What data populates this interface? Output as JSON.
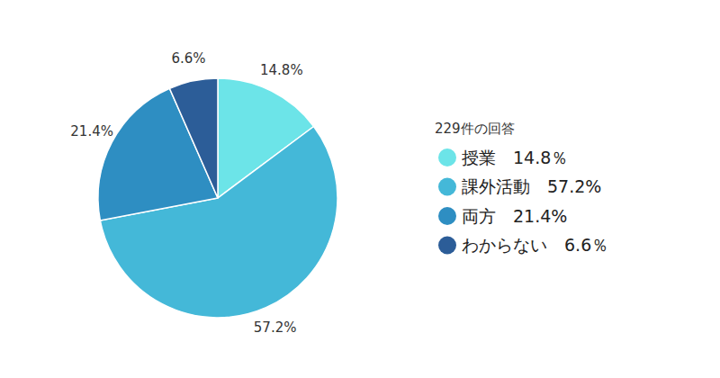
{
  "chart_data": {
    "type": "pie",
    "title": "229件の回答",
    "categories": [
      "授業　14.8％",
      "課外活動　57.2%",
      "両方　21.4%",
      "わからない　6.6％"
    ],
    "values": [
      14.8,
      57.2,
      21.4,
      6.6
    ],
    "value_labels": [
      "14.8%",
      "57.2%",
      "21.4%",
      "6.6%"
    ],
    "colors": [
      "#6ce4e8",
      "#44b8d8",
      "#2e8ec2",
      "#2c5d98"
    ],
    "data_labels": true,
    "legend": "right"
  }
}
